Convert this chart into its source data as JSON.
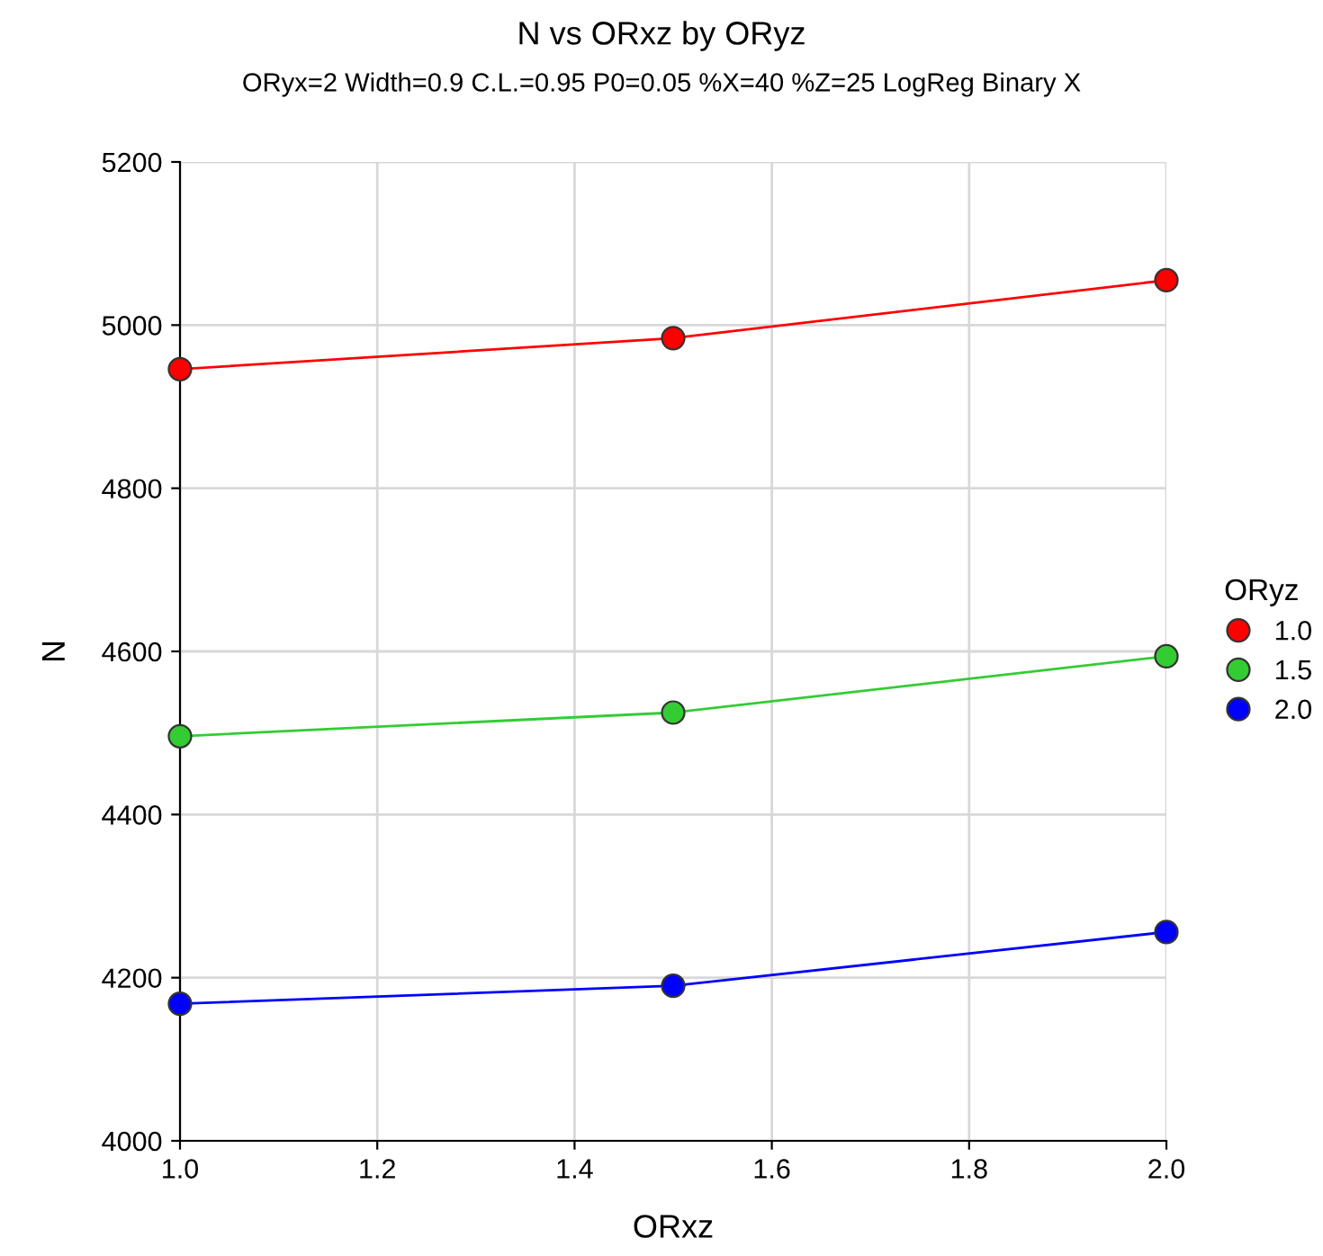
{
  "chart_data": {
    "type": "line",
    "title": "N vs ORxz by ORyz",
    "subtitle": "ORyx=2 Width=0.9 C.L.=0.95 P0=0.05 %X=40 %Z=25 LogReg Binary X",
    "xlabel": "ORxz",
    "ylabel": "N",
    "legend_title": "ORyz",
    "x": [
      1.0,
      1.5,
      2.0
    ],
    "series": [
      {
        "name": "1.0",
        "color": "#ff0000",
        "values": [
          4946,
          4984,
          5055
        ]
      },
      {
        "name": "1.5",
        "color": "#33cc33",
        "values": [
          4496,
          4525,
          4594
        ]
      },
      {
        "name": "2.0",
        "color": "#0000ff",
        "values": [
          4168,
          4190,
          4256
        ]
      }
    ],
    "xlim": [
      1.0,
      2.0
    ],
    "xticks": [
      {
        "value": 1.0,
        "label": "1.0"
      },
      {
        "value": 1.2,
        "label": "1.2"
      },
      {
        "value": 1.4,
        "label": "1.4"
      },
      {
        "value": 1.6,
        "label": "1.6"
      },
      {
        "value": 1.8,
        "label": "1.8"
      },
      {
        "value": 2.0,
        "label": "2.0"
      }
    ],
    "ylim": [
      4000,
      5200
    ],
    "yticks": [
      4000,
      4200,
      4400,
      4600,
      4800,
      5000,
      5200
    ],
    "grid": true,
    "legend": "right",
    "marker": "circle",
    "line_style": "solid"
  }
}
